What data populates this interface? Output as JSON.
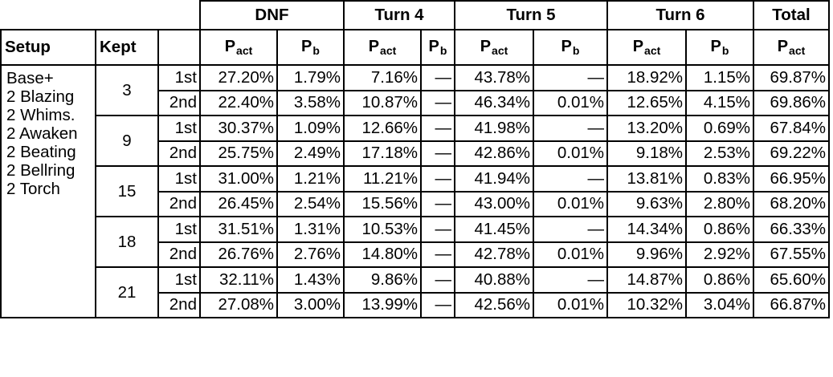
{
  "groups": [
    "DNF",
    "Turn 4",
    "Turn 5",
    "Turn 6",
    "Total"
  ],
  "labels": {
    "setup": "Setup",
    "kept": "Kept"
  },
  "sub": {
    "act": "act",
    "b": "b"
  },
  "setup_text": "Base+\n2 Blazing\n2 Whims.\n2 Awaken\n2 Beating\n2 Bellring\n2 Torch",
  "rows": [
    {
      "kept": "3",
      "ord": [
        "1st",
        "2nd"
      ],
      "vals": [
        [
          "27.20%",
          "1.79%",
          "7.16%",
          "—",
          "43.78%",
          "—",
          "18.92%",
          "1.15%",
          "69.87%"
        ],
        [
          "22.40%",
          "3.58%",
          "10.87%",
          "—",
          "46.34%",
          "0.01%",
          "12.65%",
          "4.15%",
          "69.86%"
        ]
      ]
    },
    {
      "kept": "9",
      "ord": [
        "1st",
        "2nd"
      ],
      "vals": [
        [
          "30.37%",
          "1.09%",
          "12.66%",
          "—",
          "41.98%",
          "—",
          "13.20%",
          "0.69%",
          "67.84%"
        ],
        [
          "25.75%",
          "2.49%",
          "17.18%",
          "—",
          "42.86%",
          "0.01%",
          "9.18%",
          "2.53%",
          "69.22%"
        ]
      ]
    },
    {
      "kept": "15",
      "ord": [
        "1st",
        "2nd"
      ],
      "vals": [
        [
          "31.00%",
          "1.21%",
          "11.21%",
          "—",
          "41.94%",
          "—",
          "13.81%",
          "0.83%",
          "66.95%"
        ],
        [
          "26.45%",
          "2.54%",
          "15.56%",
          "—",
          "43.00%",
          "0.01%",
          "9.63%",
          "2.80%",
          "68.20%"
        ]
      ]
    },
    {
      "kept": "18",
      "ord": [
        "1st",
        "2nd"
      ],
      "vals": [
        [
          "31.51%",
          "1.31%",
          "10.53%",
          "—",
          "41.45%",
          "—",
          "14.34%",
          "0.86%",
          "66.33%"
        ],
        [
          "26.76%",
          "2.76%",
          "14.80%",
          "—",
          "42.78%",
          "0.01%",
          "9.96%",
          "2.92%",
          "67.55%"
        ]
      ]
    },
    {
      "kept": "21",
      "ord": [
        "1st",
        "2nd"
      ],
      "vals": [
        [
          "32.11%",
          "1.43%",
          "9.86%",
          "—",
          "40.88%",
          "—",
          "14.87%",
          "0.86%",
          "65.60%"
        ],
        [
          "27.08%",
          "3.00%",
          "13.99%",
          "—",
          "42.56%",
          "0.01%",
          "10.32%",
          "3.04%",
          "66.87%"
        ]
      ]
    }
  ]
}
